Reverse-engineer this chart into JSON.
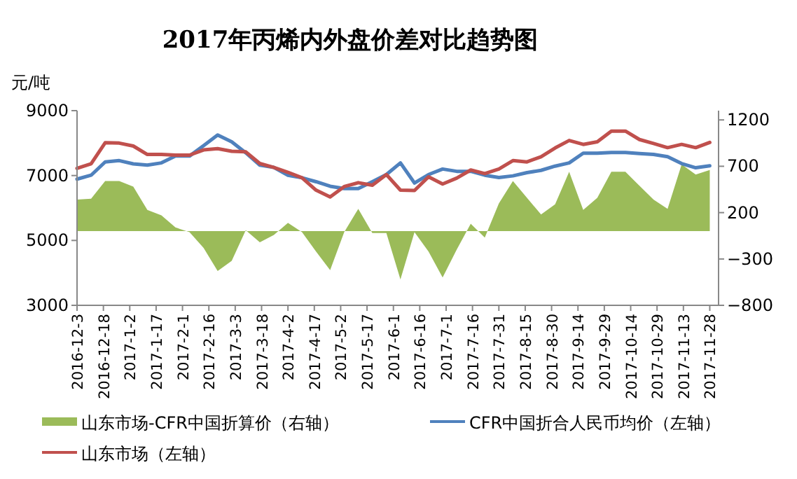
{
  "chart_data": {
    "type": "line",
    "title": "2017年丙烯内外盘价差对比趋势图",
    "ylabel": "元/吨",
    "legend": "bottom",
    "x": [
      "2016-12-03",
      "2016-12-11",
      "2016-12-19",
      "2016-12-27",
      "2017-01-04",
      "2017-01-12",
      "2017-01-20",
      "2017-01-28",
      "2017-02-05",
      "2017-02-13",
      "2017-02-21",
      "2017-03-01",
      "2017-03-09",
      "2017-03-17",
      "2017-03-25",
      "2017-04-02",
      "2017-04-10",
      "2017-04-18",
      "2017-04-26",
      "2017-05-04",
      "2017-05-12",
      "2017-05-20",
      "2017-05-28",
      "2017-06-05",
      "2017-06-13",
      "2017-06-21",
      "2017-06-29",
      "2017-07-07",
      "2017-07-15",
      "2017-07-23",
      "2017-07-31",
      "2017-08-08",
      "2017-08-16",
      "2017-08-24",
      "2017-09-01",
      "2017-09-09",
      "2017-09-17",
      "2017-09-25",
      "2017-10-03",
      "2017-10-11",
      "2017-10-19",
      "2017-10-27",
      "2017-11-04",
      "2017-11-12",
      "2017-11-20",
      "2017-11-28"
    ],
    "series": [
      {
        "name": "山东市场-CFR中国折算价（右轴）",
        "type": "area",
        "axis": "y2",
        "color": "#9bbb59",
        "values": [
          340,
          350,
          540,
          540,
          480,
          230,
          170,
          40,
          -10,
          -180,
          -430,
          -320,
          10,
          -120,
          -40,
          90,
          -10,
          -220,
          -420,
          -10,
          240,
          -20,
          -20,
          -520,
          -10,
          -220,
          -500,
          -200,
          80,
          -70,
          300,
          540,
          360,
          180,
          290,
          640,
          230,
          360,
          640,
          640,
          490,
          340,
          240,
          720,
          610,
          660
        ]
      },
      {
        "name": "CFR中国折合人民币均价（左轴）",
        "color": "#4f81bd",
        "values": [
          6890,
          7010,
          7420,
          7460,
          7360,
          7320,
          7390,
          7600,
          7600,
          7920,
          8250,
          8040,
          7700,
          7320,
          7250,
          7010,
          6930,
          6810,
          6670,
          6600,
          6600,
          6810,
          7030,
          7390,
          6770,
          7030,
          7200,
          7130,
          7130,
          7010,
          6940,
          6990,
          7090,
          7160,
          7290,
          7390,
          7690,
          7690,
          7710,
          7710,
          7680,
          7650,
          7580,
          7370,
          7240,
          7300
        ]
      },
      {
        "name": "山东市场（左轴）",
        "color": "#c0504d",
        "values": [
          7220,
          7360,
          8010,
          8000,
          7910,
          7650,
          7650,
          7630,
          7630,
          7790,
          7830,
          7750,
          7730,
          7370,
          7250,
          7100,
          6930,
          6550,
          6340,
          6660,
          6780,
          6700,
          7030,
          6550,
          6540,
          6960,
          6740,
          6920,
          7170,
          7060,
          7200,
          7460,
          7420,
          7580,
          7850,
          8080,
          7960,
          8040,
          8370,
          8370,
          8110,
          7990,
          7860,
          7960,
          7860,
          8020
        ]
      }
    ],
    "xlim": [
      "2016-12-03",
      "2017-12-03"
    ],
    "xticks": [
      {
        "value": "2016-12-03",
        "label": "2016-12-3"
      },
      {
        "value": "2016-12-18",
        "label": "2016-12-18"
      },
      {
        "value": "2017-01-02",
        "label": "2017-1-2"
      },
      {
        "value": "2017-01-17",
        "label": "2017-1-17"
      },
      {
        "value": "2017-02-01",
        "label": "2017-2-1"
      },
      {
        "value": "2017-02-16",
        "label": "2017-2-16"
      },
      {
        "value": "2017-03-03",
        "label": "2017-3-3"
      },
      {
        "value": "2017-03-18",
        "label": "2017-3-18"
      },
      {
        "value": "2017-04-02",
        "label": "2017-4-2"
      },
      {
        "value": "2017-04-17",
        "label": "2017-4-17"
      },
      {
        "value": "2017-05-02",
        "label": "2017-5-2"
      },
      {
        "value": "2017-05-17",
        "label": "2017-5-17"
      },
      {
        "value": "2017-06-01",
        "label": "2017-6-1"
      },
      {
        "value": "2017-06-16",
        "label": "2017-6-16"
      },
      {
        "value": "2017-07-01",
        "label": "2017-7-1"
      },
      {
        "value": "2017-07-16",
        "label": "2017-7-16"
      },
      {
        "value": "2017-07-31",
        "label": "2017-7-31"
      },
      {
        "value": "2017-08-15",
        "label": "2017-8-15"
      },
      {
        "value": "2017-08-30",
        "label": "2017-8-30"
      },
      {
        "value": "2017-09-14",
        "label": "2017-9-14"
      },
      {
        "value": "2017-09-29",
        "label": "2017-9-29"
      },
      {
        "value": "2017-10-14",
        "label": "2017-10-14"
      },
      {
        "value": "2017-10-29",
        "label": "2017-10-29"
      },
      {
        "value": "2017-11-13",
        "label": "2017-11-13"
      },
      {
        "value": "2017-11-28",
        "label": "2017-11-28"
      }
    ],
    "ylim": [
      3000,
      9000
    ],
    "yticks": [
      3000,
      5000,
      7000,
      9000
    ],
    "y2lim": [
      -800,
      1300
    ],
    "y2ticks": [
      -800,
      -300,
      200,
      700,
      1200
    ]
  }
}
